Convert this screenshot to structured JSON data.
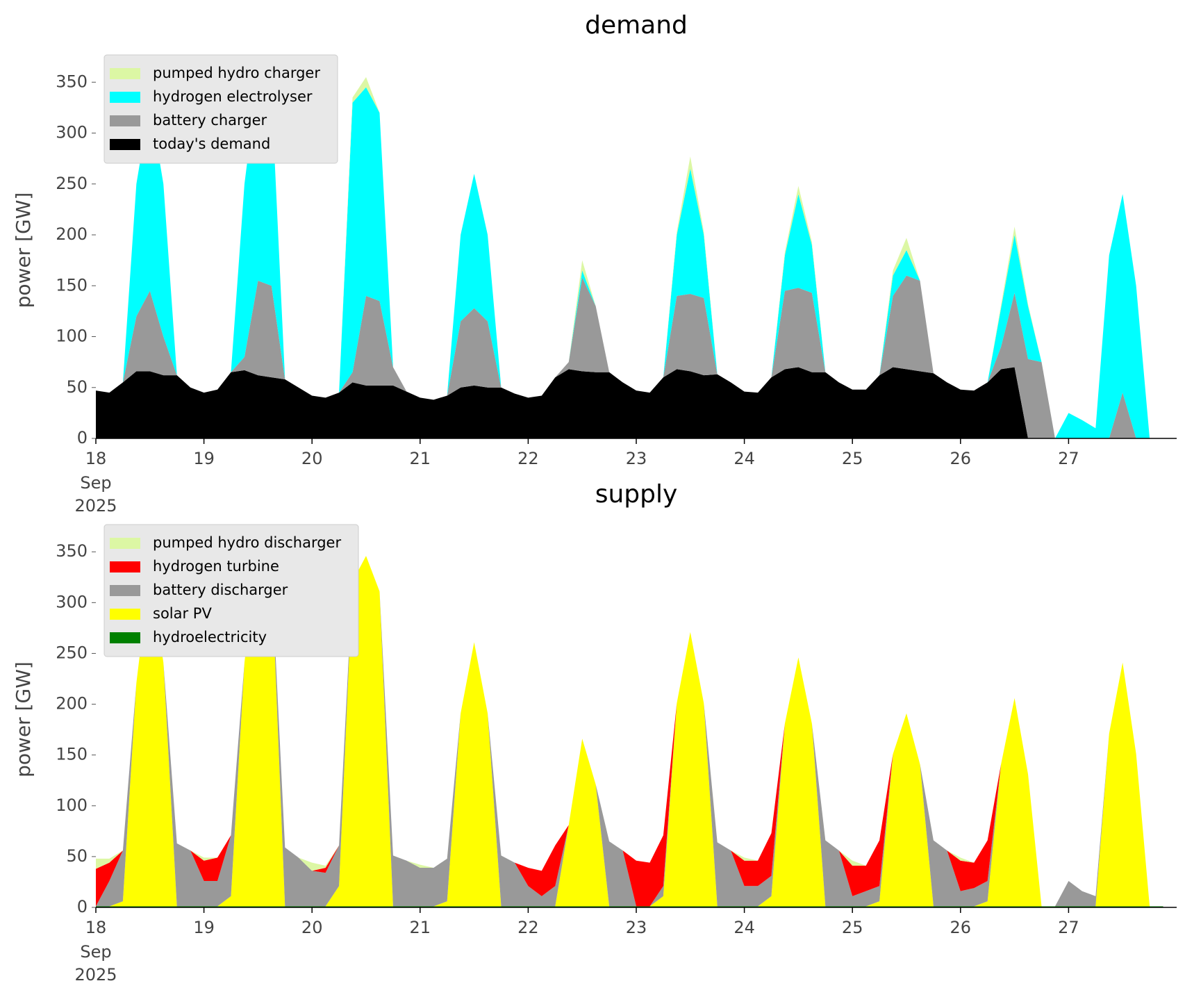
{
  "chart_data": [
    {
      "type": "area",
      "stacked": true,
      "title": "demand",
      "ylabel": "power [GW]",
      "legend": "upper left",
      "x": [
        18,
        18.125,
        18.25,
        18.375,
        18.5,
        18.625,
        18.75,
        18.875,
        19,
        19.125,
        19.25,
        19.375,
        19.5,
        19.625,
        19.75,
        19.875,
        20,
        20.125,
        20.25,
        20.375,
        20.5,
        20.625,
        20.75,
        20.875,
        21,
        21.125,
        21.25,
        21.375,
        21.5,
        21.625,
        21.75,
        21.875,
        22,
        22.125,
        22.25,
        22.375,
        22.5,
        22.625,
        22.75,
        22.875,
        23,
        23.125,
        23.25,
        23.375,
        23.5,
        23.625,
        23.75,
        23.875,
        24,
        24.125,
        24.25,
        24.375,
        24.5,
        24.625,
        24.75,
        24.875,
        25,
        25.125,
        25.25,
        25.375,
        25.5,
        25.625,
        25.75,
        25.875,
        26,
        26.125,
        26.25,
        26.375,
        26.5,
        26.625,
        26.75,
        26.875,
        27,
        27.125,
        27.25,
        27.375,
        27.5,
        27.625,
        27.75,
        27.875
      ],
      "xlim": [
        18,
        28
      ],
      "xticks": [
        18,
        19,
        20,
        21,
        22,
        23,
        24,
        25,
        26,
        27
      ],
      "xtick_month": "Sep",
      "xtick_year": "2025",
      "ylim": [
        0,
        370
      ],
      "yticks": [
        0,
        50,
        100,
        150,
        200,
        250,
        300,
        350
      ],
      "series": [
        {
          "name": "pumped hydro charger",
          "color": "#dcf7a4",
          "values": [
            0,
            0,
            0,
            0,
            0,
            0,
            0,
            0,
            0,
            0,
            0,
            0,
            0,
            0,
            0,
            0,
            0,
            0,
            0,
            5,
            10,
            0,
            0,
            0,
            0,
            0,
            0,
            0,
            0,
            0,
            0,
            0,
            0,
            0,
            0,
            0,
            10,
            0,
            0,
            0,
            0,
            0,
            0,
            3,
            12,
            3,
            0,
            0,
            0,
            0,
            0,
            3,
            8,
            3,
            0,
            0,
            0,
            0,
            0,
            5,
            12,
            0,
            0,
            0,
            0,
            0,
            0,
            3,
            8,
            2,
            0,
            0,
            0,
            0,
            0,
            0,
            0,
            0,
            0,
            0
          ]
        },
        {
          "name": "hydrogen electrolyser",
          "color": "#00ffff",
          "values": [
            0,
            0,
            0,
            130,
            185,
            150,
            0,
            0,
            0,
            0,
            0,
            170,
            200,
            190,
            0,
            0,
            0,
            0,
            0,
            265,
            205,
            185,
            0,
            0,
            0,
            0,
            0,
            85,
            132,
            85,
            0,
            0,
            0,
            0,
            0,
            0,
            7,
            0,
            0,
            0,
            0,
            0,
            0,
            60,
            123,
            62,
            0,
            0,
            0,
            0,
            0,
            35,
            92,
            47,
            0,
            0,
            0,
            0,
            0,
            20,
            25,
            0,
            0,
            0,
            0,
            0,
            0,
            38,
            57,
            52,
            0,
            0,
            25,
            18,
            10,
            180,
            195,
            150,
            0,
            0
          ]
        },
        {
          "name": "battery charger",
          "color": "#999999",
          "values": [
            0,
            0,
            0,
            54,
            79,
            38,
            0,
            0,
            0,
            0,
            0,
            13,
            93,
            90,
            0,
            0,
            0,
            0,
            0,
            10,
            88,
            83,
            18,
            0,
            0,
            0,
            0,
            65,
            76,
            65,
            0,
            0,
            0,
            0,
            0,
            7,
            92,
            65,
            0,
            0,
            0,
            0,
            0,
            72,
            76,
            76,
            0,
            0,
            0,
            0,
            0,
            77,
            78,
            78,
            0,
            0,
            0,
            0,
            0,
            70,
            92,
            89,
            0,
            0,
            0,
            0,
            0,
            22,
            73,
            78,
            75,
            0,
            0,
            0,
            0,
            0,
            45,
            0,
            0,
            0
          ]
        },
        {
          "name": "today's demand",
          "color": "#000000",
          "values": [
            47,
            45,
            55,
            66,
            66,
            62,
            62,
            50,
            45,
            48,
            65,
            67,
            62,
            60,
            58,
            50,
            42,
            40,
            45,
            55,
            52,
            52,
            52,
            46,
            40,
            38,
            42,
            50,
            52,
            50,
            50,
            44,
            40,
            42,
            60,
            68,
            66,
            65,
            65,
            55,
            47,
            45,
            60,
            68,
            66,
            62,
            63,
            55,
            46,
            45,
            60,
            68,
            70,
            65,
            65,
            55,
            48,
            48,
            62,
            70,
            68,
            66,
            64,
            55,
            48,
            47,
            55,
            68,
            70,
            0,
            0,
            0,
            0,
            0,
            0,
            0,
            0,
            0,
            0,
            0
          ]
        }
      ]
    },
    {
      "type": "area",
      "stacked": true,
      "title": "supply",
      "ylabel": "power [GW]",
      "legend": "upper left",
      "x": [
        18,
        18.125,
        18.25,
        18.375,
        18.5,
        18.625,
        18.75,
        18.875,
        19,
        19.125,
        19.25,
        19.375,
        19.5,
        19.625,
        19.75,
        19.875,
        20,
        20.125,
        20.25,
        20.375,
        20.5,
        20.625,
        20.75,
        20.875,
        21,
        21.125,
        21.25,
        21.375,
        21.5,
        21.625,
        21.75,
        21.875,
        22,
        22.125,
        22.25,
        22.375,
        22.5,
        22.625,
        22.75,
        22.875,
        23,
        23.125,
        23.25,
        23.375,
        23.5,
        23.625,
        23.75,
        23.875,
        24,
        24.125,
        24.25,
        24.375,
        24.5,
        24.625,
        24.75,
        24.875,
        25,
        25.125,
        25.25,
        25.375,
        25.5,
        25.625,
        25.75,
        25.875,
        26,
        26.125,
        26.25,
        26.375,
        26.5,
        26.625,
        26.75,
        26.875,
        27,
        27.125,
        27.25,
        27.375,
        27.5,
        27.625,
        27.75,
        27.875
      ],
      "xlim": [
        18,
        28
      ],
      "xticks": [
        18,
        19,
        20,
        21,
        22,
        23,
        24,
        25,
        26,
        27
      ],
      "xtick_month": "Sep",
      "xtick_year": "2025",
      "ylim": [
        0,
        370
      ],
      "yticks": [
        0,
        50,
        100,
        150,
        200,
        250,
        300,
        350
      ],
      "series": [
        {
          "name": "pumped hydro discharger",
          "color": "#dcf7a4",
          "values": [
            10,
            4,
            0,
            0,
            0,
            0,
            0,
            0,
            3,
            0,
            0,
            0,
            0,
            0,
            0,
            0,
            8,
            2,
            0,
            0,
            0,
            0,
            0,
            0,
            3,
            0,
            0,
            0,
            0,
            0,
            0,
            0,
            0,
            0,
            0,
            0,
            0,
            0,
            0,
            0,
            0,
            0,
            0,
            0,
            0,
            0,
            0,
            0,
            3,
            0,
            0,
            0,
            0,
            0,
            0,
            0,
            5,
            0,
            0,
            0,
            0,
            0,
            0,
            0,
            3,
            0,
            0,
            0,
            0,
            0,
            0,
            0,
            0,
            0,
            0,
            0,
            0,
            0,
            0,
            0
          ]
        },
        {
          "name": "hydrogen turbine",
          "color": "#ff0000",
          "values": [
            37,
            18,
            0,
            0,
            0,
            0,
            0,
            0,
            20,
            23,
            0,
            0,
            0,
            0,
            0,
            0,
            0,
            5,
            0,
            0,
            0,
            0,
            0,
            0,
            0,
            0,
            0,
            0,
            0,
            0,
            0,
            0,
            18,
            25,
            40,
            0,
            0,
            0,
            0,
            0,
            45,
            43,
            50,
            0,
            0,
            0,
            0,
            0,
            25,
            25,
            42,
            0,
            0,
            0,
            0,
            0,
            30,
            25,
            45,
            0,
            0,
            0,
            0,
            0,
            30,
            25,
            40,
            0,
            0,
            0,
            0,
            0,
            0,
            0,
            0,
            0,
            0,
            0,
            0,
            0
          ]
        },
        {
          "name": "battery discharger",
          "color": "#999999",
          "values": [
            0,
            25,
            50,
            0,
            0,
            0,
            62,
            55,
            25,
            25,
            60,
            0,
            0,
            0,
            58,
            48,
            35,
            33,
            40,
            0,
            0,
            0,
            50,
            45,
            38,
            38,
            42,
            0,
            0,
            0,
            50,
            43,
            20,
            10,
            20,
            0,
            0,
            0,
            64,
            55,
            0,
            0,
            10,
            0,
            0,
            0,
            63,
            55,
            20,
            20,
            20,
            0,
            0,
            0,
            65,
            55,
            10,
            15,
            15,
            0,
            0,
            0,
            65,
            55,
            15,
            18,
            20,
            0,
            0,
            0,
            0,
            0,
            25,
            15,
            10,
            0,
            0,
            0,
            0,
            0
          ]
        },
        {
          "name": "solar PV",
          "color": "#ffff00",
          "values": [
            0,
            0,
            5,
            220,
            330,
            240,
            0,
            0,
            0,
            0,
            10,
            240,
            355,
            330,
            0,
            0,
            0,
            0,
            20,
            320,
            345,
            310,
            0,
            0,
            0,
            0,
            5,
            190,
            260,
            190,
            0,
            0,
            0,
            0,
            0,
            80,
            165,
            120,
            0,
            0,
            0,
            0,
            10,
            200,
            270,
            200,
            0,
            0,
            0,
            0,
            10,
            180,
            245,
            180,
            0,
            0,
            0,
            0,
            5,
            150,
            190,
            140,
            0,
            0,
            0,
            0,
            5,
            140,
            205,
            130,
            0,
            0,
            0,
            0,
            0,
            170,
            240,
            150,
            0,
            0
          ]
        },
        {
          "name": "hydroelectricity",
          "color": "#008000",
          "values": [
            1,
            1,
            1,
            1,
            1,
            1,
            1,
            1,
            1,
            1,
            1,
            1,
            1,
            1,
            1,
            1,
            1,
            1,
            1,
            1,
            1,
            1,
            1,
            1,
            1,
            1,
            1,
            1,
            1,
            1,
            1,
            1,
            1,
            1,
            1,
            1,
            1,
            1,
            1,
            1,
            1,
            1,
            1,
            1,
            1,
            1,
            1,
            1,
            1,
            1,
            1,
            1,
            1,
            1,
            1,
            1,
            1,
            1,
            1,
            1,
            1,
            1,
            1,
            1,
            1,
            1,
            1,
            1,
            1,
            1,
            1,
            1,
            1,
            1,
            1,
            1,
            1,
            1,
            1,
            1
          ]
        }
      ]
    }
  ]
}
